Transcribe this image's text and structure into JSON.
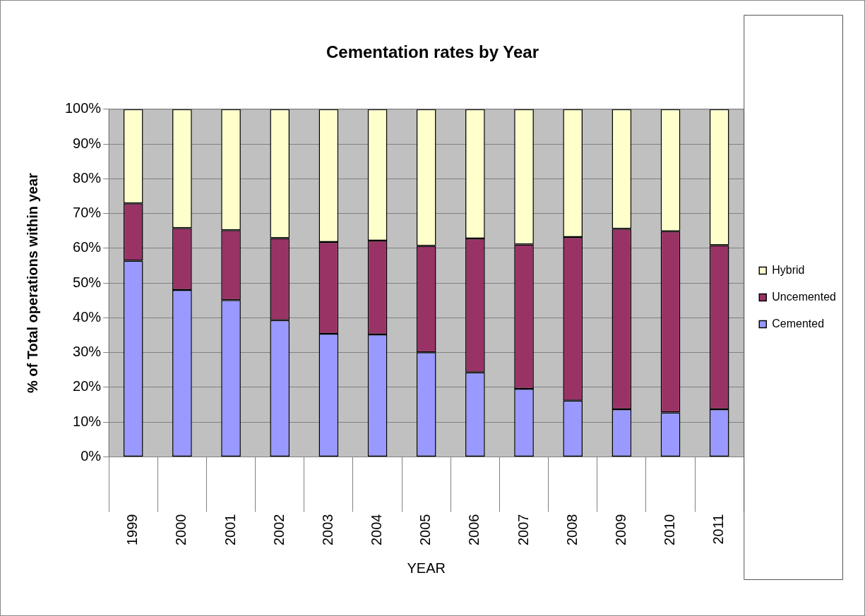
{
  "chart_data": {
    "type": "bar",
    "title": "Cementation rates by Year",
    "xlabel": "YEAR",
    "ylabel": "% of Total operations within year",
    "categories": [
      "1999",
      "2000",
      "2001",
      "2002",
      "2003",
      "2004",
      "2005",
      "2006",
      "2007",
      "2008",
      "2009",
      "2010",
      "2011"
    ],
    "stacked": true,
    "series": [
      {
        "name": "Cemented",
        "color": "#9999ff",
        "values": [
          56.4,
          48.0,
          45.1,
          39.3,
          35.4,
          35.2,
          30.1,
          24.3,
          19.6,
          16.2,
          13.7,
          12.8,
          13.7
        ]
      },
      {
        "name": "Uncemented",
        "color": "#993366",
        "values": [
          16.5,
          17.8,
          20.1,
          23.6,
          26.4,
          27.0,
          30.6,
          38.5,
          41.5,
          47.0,
          51.9,
          52.1,
          47.2
        ]
      },
      {
        "name": "Hybrid",
        "color": "#ffffcc",
        "values": [
          27.1,
          34.2,
          34.8,
          37.1,
          38.2,
          37.8,
          39.3,
          37.2,
          38.9,
          36.8,
          34.4,
          35.1,
          39.1
        ]
      }
    ],
    "ylim": [
      0,
      100
    ],
    "yticks": [
      {
        "value": 0,
        "label": "0%"
      },
      {
        "value": 10,
        "label": "10%"
      },
      {
        "value": 20,
        "label": "20%"
      },
      {
        "value": 30,
        "label": "30%"
      },
      {
        "value": 40,
        "label": "40%"
      },
      {
        "value": 50,
        "label": "50%"
      },
      {
        "value": 60,
        "label": "60%"
      },
      {
        "value": 70,
        "label": "70%"
      },
      {
        "value": 80,
        "label": "80%"
      },
      {
        "value": 90,
        "label": "90%"
      },
      {
        "value": 100,
        "label": "100%"
      }
    ],
    "grid": "y",
    "legend": "right"
  }
}
